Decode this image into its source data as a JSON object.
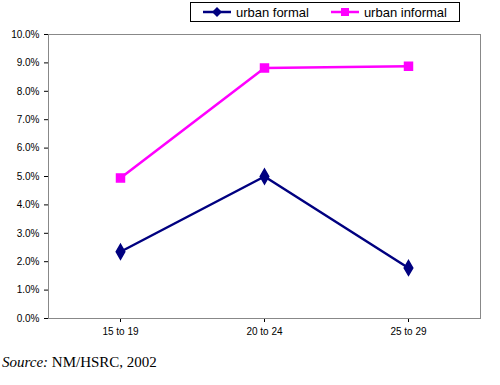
{
  "chart_data": {
    "type": "line",
    "caption": "Source: NM/HSRC, 2002",
    "categories": [
      "15 to 19",
      "20 to 24",
      "25 to 29"
    ],
    "series": [
      {
        "name": "urban formal",
        "color": "#000080",
        "marker": "diamond",
        "values": [
          2.35,
          5.0,
          1.78
        ]
      },
      {
        "name": "urban informal",
        "color": "#FF00FF",
        "marker": "square",
        "values": [
          4.95,
          8.82,
          8.88
        ]
      }
    ],
    "ylim": [
      0,
      10
    ],
    "yticks": [
      {
        "value": 0,
        "label": "0.0%"
      },
      {
        "value": 1,
        "label": "1.0%"
      },
      {
        "value": 2,
        "label": "2.0%"
      },
      {
        "value": 3,
        "label": "3.0%"
      },
      {
        "value": 4,
        "label": "4.0%"
      },
      {
        "value": 5,
        "label": "5.0%"
      },
      {
        "value": 6,
        "label": "6.0%"
      },
      {
        "value": 7,
        "label": "7.0%"
      },
      {
        "value": 8,
        "label": "8.0%"
      },
      {
        "value": 9,
        "label": "9.0%"
      },
      {
        "value": 10,
        "label": "10.0%"
      }
    ],
    "grid": false,
    "legend": "top"
  }
}
